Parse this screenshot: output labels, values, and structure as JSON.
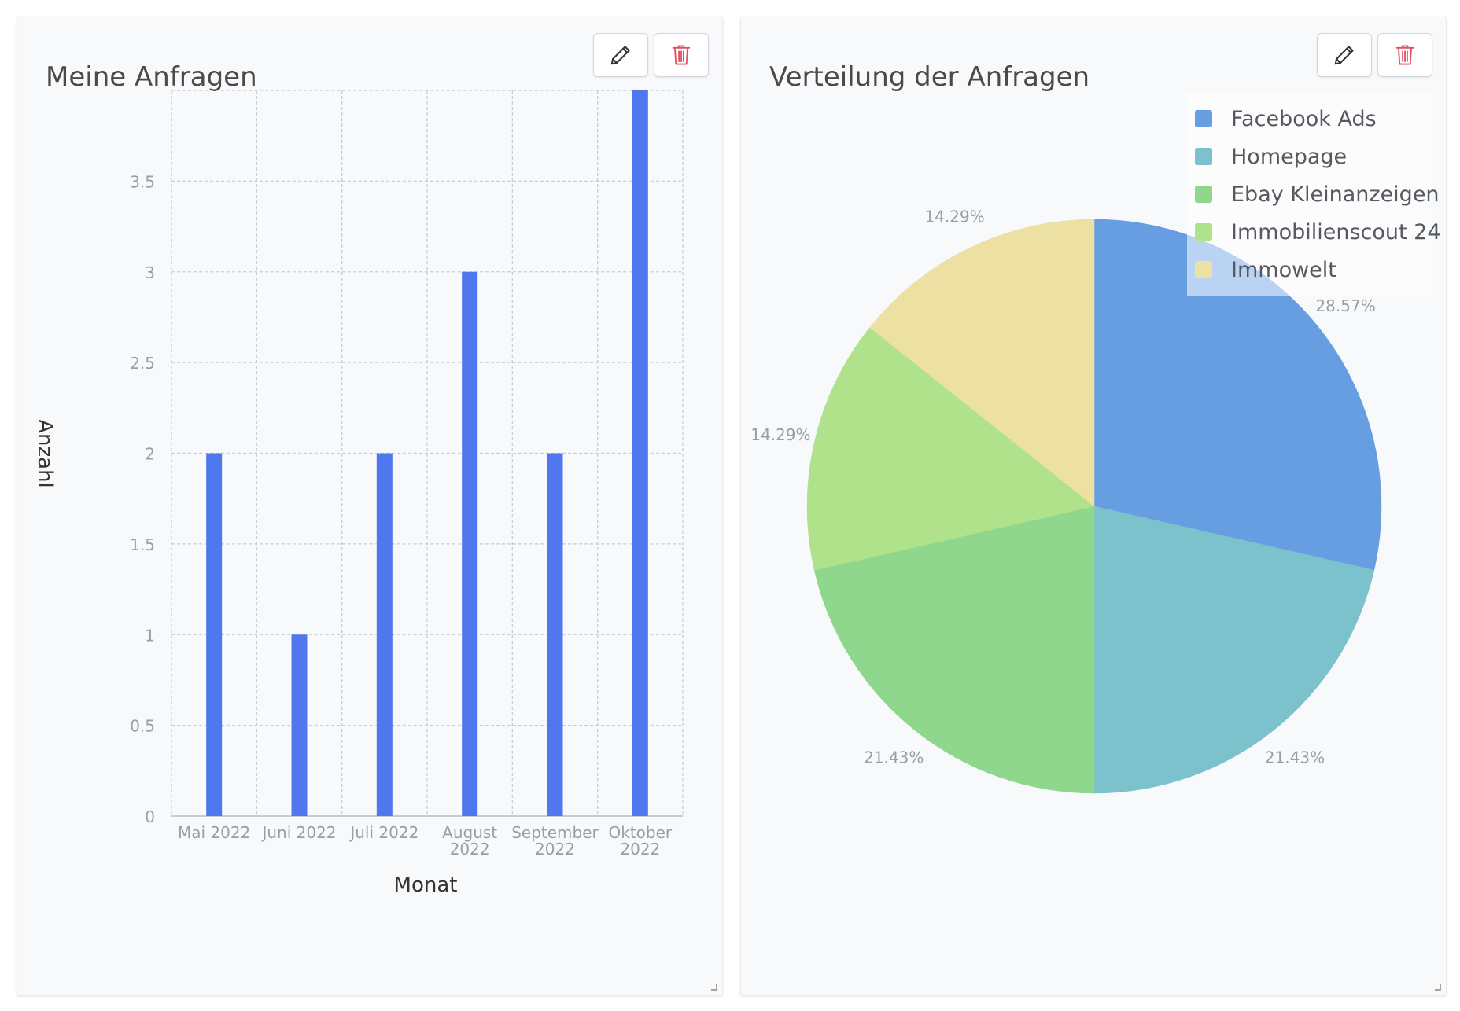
{
  "panels": [
    {
      "title": "Meine Anfragen",
      "actions": {
        "edit_icon": "pencil-icon",
        "delete_icon": "trash-icon"
      }
    },
    {
      "title": "Verteilung der Anfragen",
      "actions": {
        "edit_icon": "pencil-icon",
        "delete_icon": "trash-icon"
      }
    }
  ],
  "colors": {
    "bar": "#5078ee",
    "delete_icon": "#e0525f",
    "edit_icon": "#333333"
  },
  "chart_data": [
    {
      "type": "bar",
      "categories": [
        "Mai 2022",
        "Juni 2022",
        "Juli 2022",
        "August 2022",
        "September 2022",
        "Oktober 2022"
      ],
      "category_lines": [
        [
          "Mai 2022"
        ],
        [
          "Juni 2022"
        ],
        [
          "Juli 2022"
        ],
        [
          "August",
          "2022"
        ],
        [
          "September",
          "2022"
        ],
        [
          "Oktober",
          "2022"
        ]
      ],
      "values": [
        2,
        1,
        2,
        3,
        2,
        4
      ],
      "xlabel": "Monat",
      "ylabel": "Anzahl",
      "ylim": [
        0,
        4
      ],
      "yticks": [
        0,
        0.5,
        1,
        1.5,
        2,
        2.5,
        3,
        3.5
      ],
      "grid": true,
      "color": "#5078ee"
    },
    {
      "type": "pie",
      "labels": [
        "Facebook Ads",
        "Homepage",
        "Ebay Kleinanzeigen",
        "Immobilienscout 24",
        "Immowelt"
      ],
      "values": [
        28.57,
        21.43,
        21.43,
        14.29,
        14.29
      ],
      "value_labels": [
        "28.57%",
        "21.43%",
        "21.43%",
        "14.29%",
        "14.29%"
      ],
      "colors": [
        "#679ee2",
        "#7bc2cd",
        "#8ed78c",
        "#afe28a",
        "#ece0a3"
      ],
      "legend": "top-right"
    }
  ]
}
